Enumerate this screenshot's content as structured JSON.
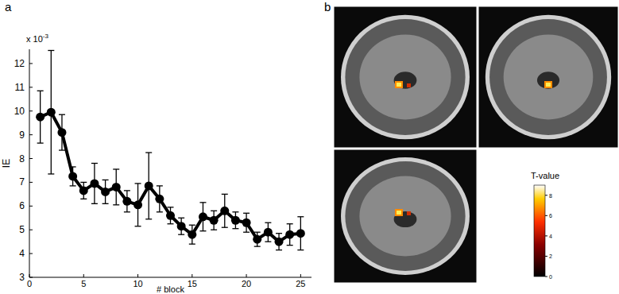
{
  "chart_data": [
    {
      "type": "line",
      "panel": "a",
      "xlabel": "# block",
      "ylabel": "IE",
      "y_multiplier": "x 10",
      "y_multiplier_exponent": "-3",
      "xlim": [
        0,
        26
      ],
      "ylim": [
        3,
        12.6
      ],
      "xticks": [
        0,
        5,
        10,
        15,
        20,
        25
      ],
      "yticks": [
        3,
        4,
        5,
        6,
        7,
        8,
        9,
        10,
        11,
        12
      ],
      "series": [
        {
          "color": "#000000",
          "marker": "circle",
          "line_style": "solid",
          "x": [
            1,
            2,
            3,
            4,
            5,
            6,
            7,
            8,
            9,
            10,
            11,
            12,
            13,
            14,
            15,
            16,
            17,
            18,
            19,
            20,
            21,
            22,
            23,
            24,
            25
          ],
          "values": [
            9.75,
            9.95,
            9.1,
            7.25,
            6.65,
            6.95,
            6.6,
            6.8,
            6.2,
            6.05,
            6.85,
            6.3,
            5.6,
            5.15,
            4.8,
            5.55,
            5.4,
            5.8,
            5.4,
            5.3,
            4.6,
            4.9,
            4.5,
            4.8,
            4.85
          ],
          "errors": [
            1.1,
            2.6,
            0.75,
            0.4,
            0.35,
            0.85,
            0.5,
            0.75,
            0.45,
            0.9,
            1.4,
            0.55,
            0.35,
            0.35,
            0.4,
            0.6,
            0.4,
            0.7,
            0.35,
            0.4,
            0.3,
            0.4,
            0.35,
            0.45,
            0.7
          ]
        }
      ]
    },
    {
      "type": "image",
      "panel": "b",
      "colorbar_label": "T-value",
      "colorbar_range": [
        0,
        9
      ],
      "colorbar_ticks": [
        0,
        2,
        4,
        6,
        8
      ]
    }
  ]
}
